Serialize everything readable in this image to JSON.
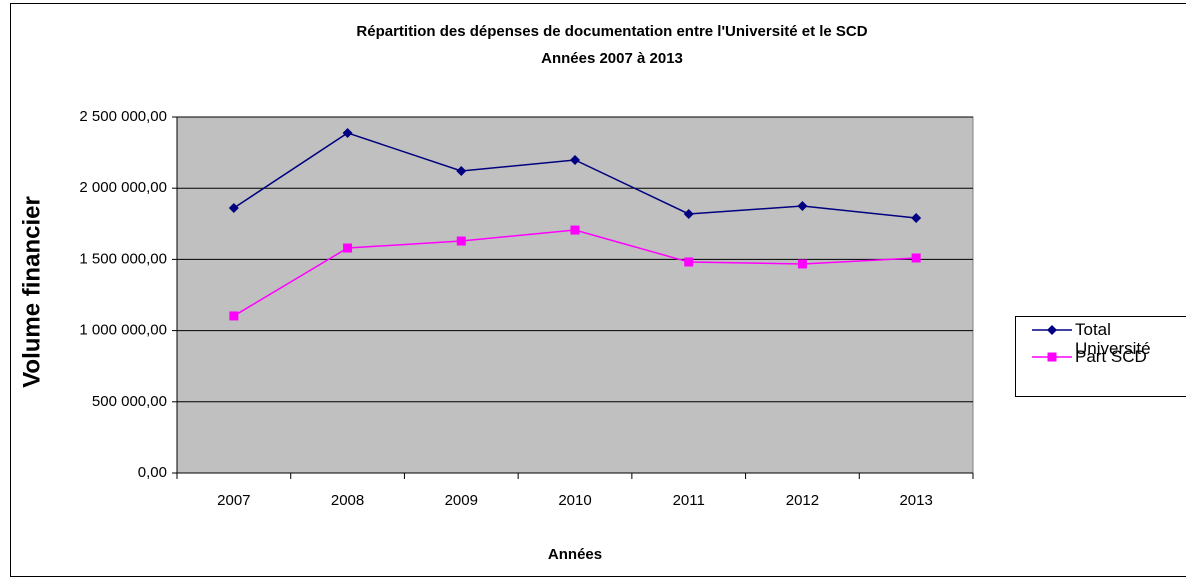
{
  "chart_data": {
    "type": "line",
    "title": "Répartition des dépenses de documentation entre l'Université et le SCD",
    "subtitle": "Années 2007 à 2013",
    "x_label": "Années",
    "y_label": "Volume financier",
    "categories": [
      "2007",
      "2008",
      "2009",
      "2010",
      "2011",
      "2012",
      "2013"
    ],
    "series": [
      {
        "name": "Total Université",
        "color": "#000080",
        "marker": "diamond",
        "values": [
          1861000,
          2388000,
          2121000,
          2198000,
          1819000,
          1875000,
          1791000
        ]
      },
      {
        "name": "Part SCD",
        "color": "#ff00ff",
        "marker": "square",
        "values": [
          1103000,
          1580000,
          1629000,
          1706000,
          1482000,
          1468000,
          1510000
        ]
      }
    ],
    "ylim": [
      0,
      2500000
    ],
    "yticks": [
      {
        "value": 0,
        "label": "0,00"
      },
      {
        "value": 500000,
        "label": "500 000,00"
      },
      {
        "value": 1000000,
        "label": "1 000 000,00"
      },
      {
        "value": 1500000,
        "label": "1 500 000,00"
      },
      {
        "value": 2000000,
        "label": "2 000 000,00"
      },
      {
        "value": 2500000,
        "label": "2 500 000,00"
      }
    ],
    "grid": true,
    "legend": "right"
  }
}
